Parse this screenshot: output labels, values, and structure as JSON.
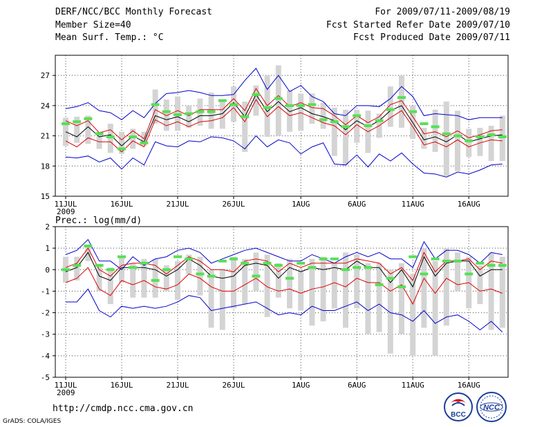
{
  "header": {
    "title": "DERF/NCC/BCC Monthly Forecast",
    "member_size": "Member Size=40",
    "variable_temp": "Mean Surf. Temp.: °C",
    "period": "For 2009/07/11-2009/08/19",
    "fcst_started": "Fcst Started Refer Date 2009/07/10",
    "fcst_produced": "Fcst Produced Date 2009/07/11"
  },
  "footer": {
    "url": "http://cmdp.ncc.cma.gov.cn",
    "credit": "GrADS: COLA/IGES",
    "logo_bcc": "BCC",
    "logo_ncc": "NCC"
  },
  "chart_data": [
    {
      "type": "line",
      "title": "Mean Surf. Temp.: °C",
      "xlabel": "",
      "ylabel": "",
      "ylim": [
        15,
        29
      ],
      "yticks": [
        15,
        18,
        21,
        24,
        27
      ],
      "grid": true,
      "x_tick_labels": [
        "11JUL",
        "16JUL",
        "21JUL",
        "26JUL",
        "1AUG",
        "6AUG",
        "11AUG",
        "16AUG"
      ],
      "x_tick_days": [
        0,
        5,
        10,
        15,
        21,
        26,
        31,
        36
      ],
      "x_year_label": "2009",
      "days": [
        0,
        1,
        2,
        3,
        4,
        5,
        6,
        7,
        8,
        9,
        10,
        11,
        12,
        13,
        14,
        15,
        16,
        17,
        18,
        19,
        20,
        21,
        22,
        23,
        24,
        25,
        26,
        27,
        28,
        29,
        30,
        31,
        32,
        33,
        34,
        35,
        36,
        37,
        38,
        39
      ],
      "series": [
        {
          "name": "max",
          "color": "#0000cc",
          "values": [
            23.7,
            23.9,
            24.3,
            23.5,
            23.3,
            22.6,
            23.5,
            22.8,
            24.2,
            25.2,
            25.3,
            25.5,
            25.3,
            25.0,
            25.0,
            25.1,
            26.5,
            27.7,
            25.6,
            27.0,
            25.4,
            26.0,
            24.9,
            24.4,
            23.2,
            23.0,
            24.0,
            24.0,
            23.9,
            24.7,
            25.9,
            24.9,
            23.0,
            23.2,
            23.1,
            23.0,
            22.6,
            22.8,
            22.8,
            22.8
          ]
        },
        {
          "name": "upper",
          "color": "#dd0000",
          "values": [
            22.5,
            22.0,
            22.5,
            21.3,
            21.6,
            20.6,
            21.5,
            20.7,
            23.6,
            23.0,
            23.5,
            23.0,
            23.6,
            23.6,
            23.6,
            24.7,
            23.5,
            25.7,
            24.0,
            25.0,
            23.9,
            24.3,
            23.8,
            23.7,
            23.0,
            22.1,
            23.0,
            22.3,
            22.9,
            24.1,
            24.5,
            22.9,
            21.2,
            21.4,
            20.9,
            21.5,
            20.8,
            21.1,
            21.5,
            21.6
          ]
        },
        {
          "name": "mean",
          "color": "#000000",
          "values": [
            21.4,
            20.9,
            21.9,
            20.9,
            21.1,
            20.0,
            21.0,
            20.4,
            23.0,
            22.6,
            22.9,
            22.4,
            23.0,
            23.0,
            23.2,
            24.3,
            22.9,
            25.1,
            23.4,
            24.4,
            23.4,
            23.8,
            23.2,
            22.9,
            22.5,
            21.6,
            22.5,
            21.9,
            22.5,
            23.5,
            24.0,
            22.3,
            20.6,
            20.9,
            20.4,
            21.1,
            20.4,
            20.7,
            21.0,
            21.1
          ]
        },
        {
          "name": "lower",
          "color": "#dd0000",
          "values": [
            20.5,
            19.9,
            20.8,
            20.4,
            20.4,
            19.4,
            20.5,
            19.9,
            22.6,
            22.0,
            22.4,
            21.9,
            22.4,
            22.5,
            22.8,
            23.8,
            22.4,
            24.6,
            22.9,
            23.9,
            23.0,
            23.3,
            22.8,
            22.3,
            22.0,
            21.1,
            22.1,
            21.4,
            22.0,
            22.8,
            23.5,
            21.9,
            20.1,
            20.4,
            19.9,
            20.6,
            19.9,
            20.3,
            20.6,
            20.5
          ]
        },
        {
          "name": "min",
          "color": "#0000cc",
          "values": [
            18.9,
            18.8,
            19.0,
            18.4,
            18.8,
            17.7,
            18.8,
            18.1,
            20.4,
            20.0,
            19.9,
            20.5,
            20.4,
            20.9,
            20.8,
            20.5,
            19.7,
            21.0,
            19.9,
            20.6,
            20.3,
            19.2,
            19.9,
            20.3,
            18.2,
            18.1,
            19.1,
            17.9,
            19.2,
            18.5,
            19.3,
            18.2,
            17.3,
            17.2,
            16.9,
            17.4,
            17.2,
            17.6,
            18.1,
            18.2
          ]
        }
      ],
      "bars": {
        "name": "ensemble range",
        "color": "#d4d4d4",
        "low": [
          20.0,
          20.3,
          20.2,
          19.7,
          19.3,
          19.2,
          19.7,
          20.0,
          22.2,
          21.5,
          21.5,
          21.8,
          22.0,
          21.7,
          21.7,
          22.4,
          19.4,
          23.0,
          20.9,
          21.0,
          21.4,
          21.5,
          22.2,
          21.7,
          19.0,
          18.1,
          20.3,
          19.3,
          20.8,
          21.9,
          21.8,
          20.7,
          19.7,
          19.4,
          17.0,
          17.5,
          18.9,
          19.0,
          18.5,
          18.5
        ],
        "high": [
          22.8,
          22.9,
          23.0,
          21.4,
          22.2,
          21.4,
          21.7,
          21.4,
          25.6,
          24.6,
          24.9,
          24.0,
          24.7,
          25.3,
          24.6,
          25.9,
          24.4,
          26.0,
          27.0,
          28.0,
          25.5,
          25.2,
          25.2,
          24.3,
          23.8,
          23.6,
          23.6,
          23.5,
          23.2,
          25.9,
          27.0,
          24.0,
          21.8,
          23.6,
          24.4,
          23.5,
          21.7,
          21.8,
          22.0,
          23.0
        ]
      },
      "observed": {
        "name": "observed",
        "color": "#55e055",
        "values": [
          22.2,
          22.4,
          22.7,
          21.2,
          20.9,
          19.7,
          20.9,
          20.3,
          24.1,
          23.4,
          23.1,
          23.2,
          23.4,
          23.4,
          24.5,
          24.1,
          22.9,
          25.1,
          23.8,
          24.7,
          24.0,
          24.0,
          24.1,
          22.6,
          22.4,
          21.9,
          23.0,
          22.0,
          22.5,
          23.6,
          24.8,
          23.4,
          22.2,
          21.9,
          21.2,
          21.0,
          20.5,
          20.9,
          21.1,
          20.9
        ]
      }
    },
    {
      "type": "line",
      "title": "Prec.: log(mm/d)",
      "xlabel": "",
      "ylabel": "",
      "ylim": [
        -5,
        2
      ],
      "yticks": [
        -5,
        -4,
        -3,
        -2,
        -1,
        0,
        1,
        2
      ],
      "grid": true,
      "x_tick_labels": [
        "11JUL",
        "16JUL",
        "21JUL",
        "26JUL",
        "1AUG",
        "6AUG",
        "11AUG",
        "16AUG"
      ],
      "x_tick_days": [
        0,
        5,
        10,
        15,
        21,
        26,
        31,
        36
      ],
      "x_year_label": "2009",
      "days": [
        0,
        1,
        2,
        3,
        4,
        5,
        6,
        7,
        8,
        9,
        10,
        11,
        12,
        13,
        14,
        15,
        16,
        17,
        18,
        19,
        20,
        21,
        22,
        23,
        24,
        25,
        26,
        27,
        28,
        29,
        30,
        31,
        32,
        33,
        34,
        35,
        36,
        37,
        38,
        39
      ],
      "series": [
        {
          "name": "max",
          "color": "#0000cc",
          "values": [
            0.7,
            0.9,
            1.4,
            0.4,
            0.4,
            0.0,
            0.6,
            0.2,
            0.5,
            0.6,
            0.9,
            1.0,
            0.8,
            0.3,
            0.5,
            0.7,
            0.9,
            1.0,
            0.8,
            0.6,
            0.4,
            0.4,
            0.7,
            0.5,
            0.3,
            0.6,
            0.8,
            0.6,
            0.8,
            0.5,
            0.5,
            0.1,
            1.3,
            0.5,
            0.9,
            0.9,
            0.7,
            0.3,
            0.8,
            0.7
          ]
        },
        {
          "name": "upper",
          "color": "#dd0000",
          "values": [
            0.1,
            0.3,
            1.0,
            0.0,
            -0.3,
            0.2,
            0.3,
            0.3,
            0.2,
            -0.2,
            0.2,
            0.6,
            0.4,
            0.0,
            0.0,
            -0.1,
            0.4,
            0.5,
            0.4,
            -0.1,
            0.3,
            0.1,
            0.3,
            0.3,
            0.3,
            0.3,
            0.5,
            0.4,
            0.3,
            -0.2,
            0.1,
            -0.5,
            0.8,
            -0.1,
            0.4,
            0.4,
            0.5,
            0.0,
            0.4,
            0.3
          ]
        },
        {
          "name": "mean",
          "color": "#000000",
          "values": [
            -0.1,
            0.1,
            0.8,
            -0.3,
            -0.5,
            0.1,
            0.1,
            0.1,
            0.0,
            -0.3,
            0.0,
            0.5,
            0.2,
            -0.3,
            -0.4,
            -0.3,
            0.2,
            0.3,
            0.2,
            -0.4,
            0.1,
            -0.1,
            0.1,
            0.0,
            0.1,
            0.0,
            0.4,
            0.1,
            0.1,
            -0.6,
            0.0,
            -0.8,
            0.6,
            -0.3,
            0.3,
            0.4,
            0.4,
            -0.3,
            0.0,
            0.0
          ]
        },
        {
          "name": "lower",
          "color": "#dd0000",
          "values": [
            -0.6,
            -0.4,
            0.1,
            -0.9,
            -1.2,
            -0.5,
            -0.7,
            -0.5,
            -0.8,
            -0.9,
            -0.7,
            -0.2,
            -0.4,
            -0.8,
            -1.0,
            -1.0,
            -0.7,
            -0.4,
            -0.8,
            -1.0,
            -0.9,
            -1.1,
            -0.9,
            -0.8,
            -0.6,
            -0.8,
            -0.4,
            -0.6,
            -0.6,
            -1.0,
            -0.7,
            -1.6,
            -0.4,
            -1.1,
            -0.4,
            -0.7,
            -0.6,
            -1.0,
            -0.9,
            -1.1
          ]
        },
        {
          "name": "min",
          "color": "#0000cc",
          "values": [
            -1.5,
            -1.5,
            -0.9,
            -1.9,
            -2.2,
            -1.7,
            -1.8,
            -1.7,
            -1.8,
            -1.7,
            -1.5,
            -1.2,
            -1.3,
            -1.9,
            -1.8,
            -1.7,
            -1.6,
            -1.5,
            -1.8,
            -2.1,
            -2.0,
            -2.1,
            -1.7,
            -1.9,
            -1.9,
            -1.7,
            -1.5,
            -1.9,
            -1.6,
            -2.0,
            -2.1,
            -2.4,
            -1.9,
            -2.5,
            -2.2,
            -2.1,
            -2.4,
            -2.8,
            -2.4,
            -2.9
          ]
        }
      ],
      "bars": {
        "name": "ensemble range",
        "color": "#d4d4d4",
        "low": [
          -0.6,
          -0.5,
          0.4,
          -1.0,
          -1.6,
          -0.6,
          -1.3,
          -1.3,
          -1.3,
          -1.0,
          -1.4,
          -0.2,
          -1.2,
          -2.7,
          -2.8,
          -1.8,
          -1.6,
          -1.0,
          -2.2,
          -1.3,
          -1.8,
          -1.9,
          -2.6,
          -2.4,
          -1.8,
          -2.7,
          -1.8,
          -3.0,
          -2.9,
          -3.9,
          -3.0,
          -4.0,
          -2.7,
          -4.0,
          -2.6,
          -1.0,
          -1.8,
          -1.6,
          -2.8,
          -2.7
        ],
        "high": [
          0.6,
          0.6,
          1.1,
          0.2,
          0.1,
          0.6,
          0.3,
          0.5,
          0.5,
          0.2,
          0.4,
          0.7,
          0.6,
          0.0,
          0.0,
          0.6,
          0.5,
          0.8,
          0.7,
          0.3,
          0.5,
          0.0,
          0.5,
          0.6,
          0.3,
          0.8,
          0.7,
          0.3,
          0.3,
          0.0,
          0.3,
          -0.2,
          1.0,
          0.4,
          1.0,
          0.8,
          0.6,
          0.2,
          0.8,
          0.6
        ]
      },
      "observed": {
        "name": "observed",
        "color": "#55e055",
        "values": [
          0.0,
          0.2,
          1.1,
          0.2,
          0.0,
          0.6,
          0.1,
          0.3,
          -0.5,
          0.0,
          0.6,
          0.5,
          -0.2,
          -0.3,
          0.4,
          0.5,
          0.3,
          -0.3,
          0.3,
          0.2,
          -0.4,
          0.3,
          0.1,
          0.5,
          0.5,
          0.0,
          0.1,
          0.1,
          -0.7,
          -0.4,
          -0.8,
          0.6,
          -0.2,
          0.5,
          0.4,
          0.4,
          -0.2,
          0.3,
          0.2,
          0.2
        ]
      }
    }
  ]
}
